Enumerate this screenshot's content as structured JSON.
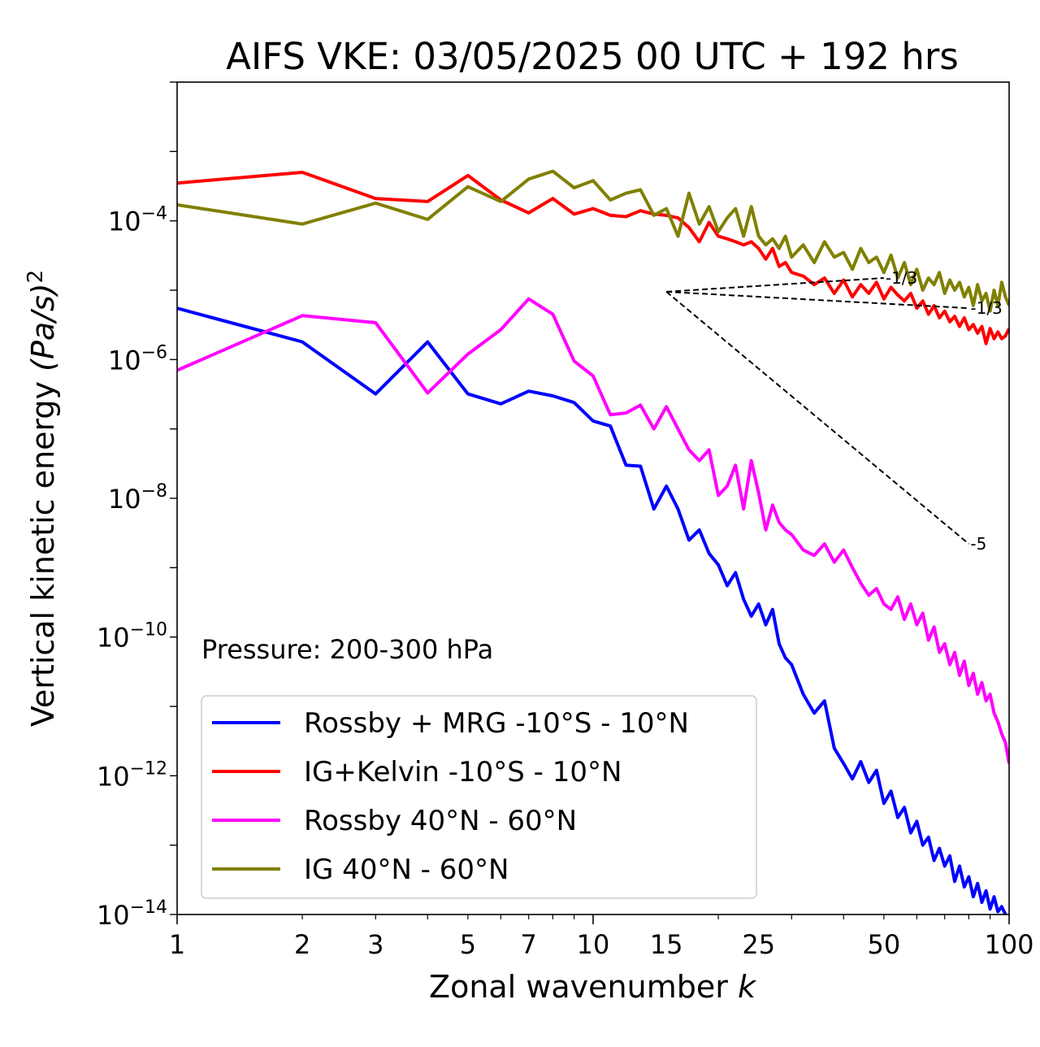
{
  "chart_data": {
    "type": "line",
    "title": "AIFS VKE: 03/05/2025 00 UTC + 192 hrs",
    "xlabel": "Zonal wavenumber",
    "xlabel_var": "k",
    "ylabel": "Vertical kinetic energy",
    "ylabel_unit": "(Pa/s)",
    "ylabel_exponent": "2",
    "xscale": "log",
    "yscale": "log",
    "xlim": [
      1,
      100
    ],
    "ylim": [
      1e-14,
      0.01
    ],
    "xticks": [
      1,
      2,
      3,
      5,
      7,
      10,
      15,
      25,
      50,
      100
    ],
    "yticks": [
      {
        "value": 0.0001,
        "base": "10",
        "exp": "−4"
      },
      {
        "value": 1e-06,
        "base": "10",
        "exp": "−6"
      },
      {
        "value": 1e-08,
        "base": "10",
        "exp": "−8"
      },
      {
        "value": 1e-10,
        "base": "10",
        "exp": "−10"
      },
      {
        "value": 1e-12,
        "base": "10",
        "exp": "−12"
      },
      {
        "value": 1e-14,
        "base": "10",
        "exp": "−14"
      }
    ],
    "grid": false,
    "legend_position": "lower-left",
    "annotation": "Pressure: 200-300 hPa",
    "series": [
      {
        "name": "Rossby + MRG -10°S - 10°N",
        "color": "#0000ff",
        "x": [
          1,
          2,
          3,
          4,
          5,
          6,
          7,
          8,
          9,
          10,
          11,
          12,
          13,
          14,
          15,
          16,
          17,
          18,
          19,
          20,
          21,
          22,
          23,
          24,
          25,
          26,
          27,
          28,
          29,
          30,
          32,
          34,
          36,
          38,
          40,
          42,
          44,
          46,
          48,
          50,
          52,
          54,
          56,
          58,
          60,
          62,
          64,
          66,
          68,
          70,
          72,
          74,
          76,
          78,
          80,
          82,
          84,
          86,
          88,
          90,
          92,
          94,
          96,
          98,
          100
        ],
        "y": [
          5.5e-06,
          1.8e-06,
          3.2e-07,
          1.8e-06,
          3.2e-07,
          2.3e-07,
          3.5e-07,
          3e-07,
          2.4e-07,
          1.3e-07,
          1.1e-07,
          3e-08,
          2.9e-08,
          7e-09,
          1.5e-08,
          7e-09,
          2.5e-09,
          3.5e-09,
          1.6e-09,
          1.1e-09,
          5.5e-10,
          8.5e-10,
          3.5e-10,
          2e-10,
          3e-10,
          1.5e-10,
          2.5e-10,
          8e-11,
          5e-11,
          4e-11,
          1.5e-11,
          8e-12,
          1.2e-11,
          2.5e-12,
          1.5e-12,
          9e-13,
          1.6e-12,
          8e-13,
          1.2e-12,
          4e-13,
          6e-13,
          2.5e-13,
          3.5e-13,
          1.5e-13,
          2.2e-13,
          1e-13,
          1.3e-13,
          6e-14,
          9e-14,
          5e-14,
          7e-14,
          3e-14,
          5e-14,
          2.5e-14,
          3.5e-14,
          1.8e-14,
          2.8e-14,
          1.5e-14,
          2.2e-14,
          1.2e-14,
          1.8e-14,
          1.1e-14,
          1.3e-14,
          1e-14,
          8e-15
        ]
      },
      {
        "name": "IG+Kelvin -10°S - 10°N",
        "color": "#ff0000",
        "x": [
          1,
          2,
          3,
          4,
          5,
          6,
          7,
          8,
          9,
          10,
          11,
          12,
          13,
          14,
          15,
          16,
          17,
          18,
          19,
          20,
          21,
          22,
          23,
          24,
          25,
          26,
          27,
          28,
          29,
          30,
          32,
          34,
          36,
          38,
          40,
          42,
          44,
          46,
          48,
          50,
          52,
          54,
          56,
          58,
          60,
          62,
          64,
          66,
          68,
          70,
          72,
          74,
          76,
          78,
          80,
          82,
          84,
          86,
          88,
          90,
          92,
          94,
          96,
          98,
          100
        ],
        "y": [
          0.00035,
          0.0005,
          0.00021,
          0.00019,
          0.00045,
          0.0002,
          0.00013,
          0.00021,
          0.000125,
          0.00015,
          0.00012,
          0.000115,
          0.00014,
          0.000125,
          0.00012,
          0.00011,
          8e-05,
          5e-05,
          9.5e-05,
          6e-05,
          5.5e-05,
          5e-05,
          4.5e-05,
          5e-05,
          4e-05,
          2.8e-05,
          4e-05,
          2.2e-05,
          2.5e-05,
          1.8e-05,
          1.6e-05,
          1.2e-05,
          1.5e-05,
          9e-06,
          1.4e-05,
          8e-06,
          1.2e-05,
          9e-06,
          1.3e-05,
          7.5e-06,
          1.1e-05,
          8.5e-06,
          7e-06,
          9e-06,
          5.5e-06,
          7e-06,
          4.5e-06,
          6e-06,
          4e-06,
          5e-06,
          3.5e-06,
          4.2e-06,
          3e-06,
          4e-06,
          2.7e-06,
          3.2e-06,
          2.4e-06,
          3e-06,
          1.7e-06,
          2.8e-06,
          2e-06,
          2.5e-06,
          2e-06,
          2.2e-06,
          2.8e-06
        ]
      },
      {
        "name": "Rossby 40°N - 60°N",
        "color": "#ff00ff",
        "x": [
          1,
          2,
          3,
          4,
          5,
          6,
          7,
          8,
          9,
          10,
          11,
          12,
          13,
          14,
          15,
          16,
          17,
          18,
          19,
          20,
          21,
          22,
          23,
          24,
          25,
          26,
          27,
          28,
          29,
          30,
          32,
          34,
          36,
          38,
          40,
          42,
          44,
          46,
          48,
          50,
          52,
          54,
          56,
          58,
          60,
          62,
          64,
          66,
          68,
          70,
          72,
          74,
          76,
          78,
          80,
          82,
          84,
          86,
          88,
          90,
          92,
          94,
          96,
          98,
          100
        ],
        "y": [
          7e-07,
          4.3e-06,
          3.4e-06,
          3.3e-07,
          1.2e-06,
          2.7e-06,
          7.5e-06,
          4.5e-06,
          9.5e-07,
          5.8e-07,
          1.6e-07,
          1.7e-07,
          2.2e-07,
          1e-07,
          2.1e-07,
          1e-07,
          5e-08,
          3.5e-08,
          5e-08,
          1.1e-08,
          1.5e-08,
          3e-08,
          7e-09,
          3.5e-08,
          1.2e-08,
          3.5e-09,
          8e-09,
          4.5e-09,
          3.5e-09,
          3e-09,
          1.8e-09,
          1.5e-09,
          2.2e-09,
          1.2e-09,
          1.8e-09,
          1e-09,
          6e-10,
          4e-10,
          5e-10,
          3e-10,
          2.5e-10,
          3.8e-10,
          1.8e-10,
          3e-10,
          1.5e-10,
          2.2e-10,
          9e-11,
          1.4e-10,
          6e-11,
          8e-11,
          4e-11,
          6e-11,
          2.8e-11,
          4.5e-11,
          2e-11,
          3e-11,
          1.5e-11,
          2.2e-11,
          1.2e-11,
          1.5e-11,
          8e-12,
          6e-12,
          4e-12,
          3e-12,
          1.5e-12
        ]
      },
      {
        "name": "IG 40°N - 60°N",
        "color": "#808000",
        "x": [
          1,
          2,
          3,
          4,
          5,
          6,
          7,
          8,
          9,
          10,
          11,
          12,
          13,
          14,
          15,
          16,
          17,
          18,
          19,
          20,
          21,
          22,
          23,
          24,
          25,
          26,
          27,
          28,
          29,
          30,
          32,
          34,
          36,
          38,
          40,
          42,
          44,
          46,
          48,
          50,
          52,
          54,
          56,
          58,
          60,
          62,
          64,
          66,
          68,
          70,
          72,
          74,
          76,
          78,
          80,
          82,
          84,
          86,
          88,
          90,
          92,
          94,
          96,
          98,
          100
        ],
        "y": [
          0.00017,
          9e-05,
          0.00018,
          0.000105,
          0.00031,
          0.00019,
          0.0004,
          0.00052,
          0.0003,
          0.00038,
          0.0002,
          0.00025,
          0.00028,
          0.00012,
          0.00015,
          6e-05,
          0.00025,
          9e-05,
          0.00016,
          7e-05,
          0.00011,
          0.00015,
          6e-05,
          0.00016,
          6e-05,
          4.5e-05,
          5.5e-05,
          4e-05,
          6e-05,
          3e-05,
          4.5e-05,
          2.5e-05,
          5e-05,
          3e-05,
          3.5e-05,
          2e-05,
          4e-05,
          2.5e-05,
          3e-05,
          1.8e-05,
          3.2e-05,
          1.5e-05,
          2.5e-05,
          1.2e-05,
          2e-05,
          1e-05,
          1.5e-05,
          1.2e-05,
          1.8e-05,
          9e-06,
          1.4e-05,
          1e-05,
          1.3e-05,
          8e-06,
          1.1e-05,
          6e-06,
          1.2e-05,
          7e-06,
          9e-06,
          5e-06,
          1e-05,
          6e-06,
          1.3e-05,
          8e-06,
          6e-06
        ]
      }
    ],
    "reference_lines": [
      {
        "label": "-1/3",
        "from": {
          "x": 15,
          "y": 9.5e-06
        },
        "to": {
          "x": 50,
          "y": 1.5e-05
        }
      },
      {
        "label": "-1/3",
        "from": {
          "x": 15,
          "y": 9.5e-06
        },
        "to": {
          "x": 80,
          "y": 5.5e-06
        }
      },
      {
        "label": "-5",
        "from": {
          "x": 15,
          "y": 9.5e-06
        },
        "to": {
          "x": 80,
          "y": 2.2e-09
        }
      }
    ]
  }
}
